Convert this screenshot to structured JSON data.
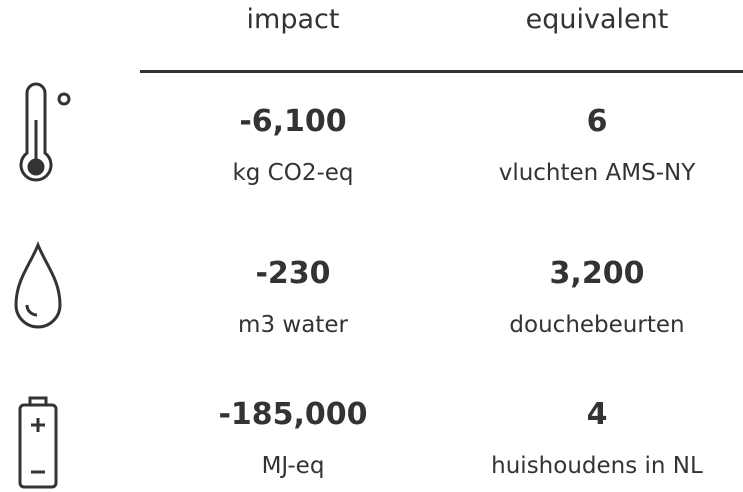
{
  "header": {
    "impact": "impact",
    "equivalent": "equivalent"
  },
  "rows": [
    {
      "impact_value": "-6,100",
      "impact_unit": "kg CO2-eq",
      "equivalent_value": "6",
      "equivalent_unit": "vluchten AMS-NY"
    },
    {
      "impact_value": "-230",
      "impact_unit": "m3 water",
      "equivalent_value": "3,200",
      "equivalent_unit": "douchebeurten"
    },
    {
      "impact_value": "-185,000",
      "impact_unit": "MJ-eq",
      "equivalent_value": "4",
      "equivalent_unit": "huishoudens in NL"
    }
  ]
}
